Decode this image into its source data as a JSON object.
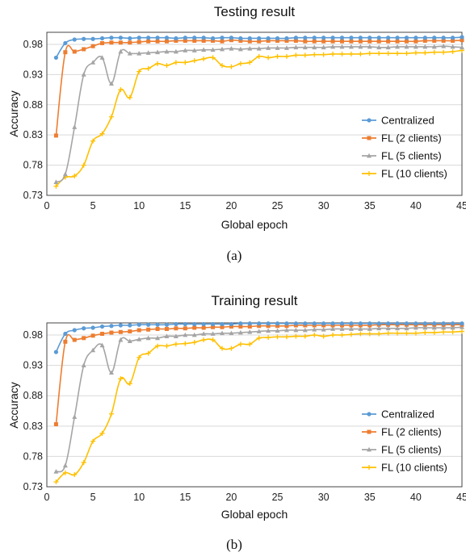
{
  "chart_data": [
    {
      "type": "line",
      "title": "Testing result",
      "caption": "(a)",
      "xlabel": "Global epoch",
      "ylabel": "Accuracy",
      "xlim": [
        0,
        45
      ],
      "ylim": [
        0.73,
        1.0
      ],
      "xticks": [
        0,
        5,
        10,
        15,
        20,
        25,
        30,
        35,
        40,
        45
      ],
      "yticks": [
        0.73,
        0.78,
        0.83,
        0.88,
        0.93,
        0.98
      ],
      "ytick_labels": [
        "0.73",
        "0.78",
        "0.83",
        "0.88",
        "0.93",
        "0.98"
      ],
      "grid": "horizontal",
      "legend_position": "right",
      "x": [
        1,
        2,
        3,
        4,
        5,
        6,
        7,
        8,
        9,
        10,
        11,
        12,
        13,
        14,
        15,
        16,
        17,
        18,
        19,
        20,
        21,
        22,
        23,
        24,
        25,
        26,
        27,
        28,
        29,
        30,
        31,
        32,
        33,
        34,
        35,
        36,
        37,
        38,
        39,
        40,
        41,
        42,
        43,
        44,
        45
      ],
      "series": [
        {
          "name": "Centralized",
          "color": "#5B9BD5",
          "marker": "circle",
          "values": [
            0.958,
            0.982,
            0.988,
            0.989,
            0.989,
            0.99,
            0.991,
            0.991,
            0.99,
            0.991,
            0.991,
            0.991,
            0.991,
            0.99,
            0.991,
            0.991,
            0.991,
            0.99,
            0.991,
            0.991,
            0.99,
            0.99,
            0.99,
            0.99,
            0.99,
            0.99,
            0.991,
            0.991,
            0.991,
            0.991,
            0.991,
            0.991,
            0.991,
            0.991,
            0.991,
            0.991,
            0.991,
            0.991,
            0.991,
            0.991,
            0.991,
            0.991,
            0.991,
            0.991,
            0.992
          ]
        },
        {
          "name": "FL (2 clients)",
          "color": "#ED7D31",
          "marker": "square",
          "values": [
            0.829,
            0.967,
            0.968,
            0.972,
            0.977,
            0.982,
            0.983,
            0.983,
            0.983,
            0.984,
            0.985,
            0.985,
            0.985,
            0.986,
            0.986,
            0.986,
            0.986,
            0.986,
            0.985,
            0.987,
            0.986,
            0.985,
            0.985,
            0.986,
            0.986,
            0.986,
            0.986,
            0.985,
            0.985,
            0.985,
            0.985,
            0.985,
            0.985,
            0.985,
            0.985,
            0.985,
            0.985,
            0.985,
            0.985,
            0.985,
            0.986,
            0.986,
            0.986,
            0.986,
            0.987
          ]
        },
        {
          "name": "FL (5 clients)",
          "color": "#A5A5A5",
          "marker": "triangle",
          "values": [
            0.752,
            0.765,
            0.843,
            0.93,
            0.95,
            0.958,
            0.915,
            0.968,
            0.965,
            0.965,
            0.966,
            0.967,
            0.968,
            0.968,
            0.97,
            0.97,
            0.971,
            0.971,
            0.972,
            0.973,
            0.972,
            0.973,
            0.973,
            0.974,
            0.974,
            0.974,
            0.975,
            0.975,
            0.975,
            0.975,
            0.976,
            0.976,
            0.976,
            0.976,
            0.976,
            0.975,
            0.975,
            0.976,
            0.976,
            0.976,
            0.976,
            0.976,
            0.977,
            0.976,
            0.975
          ]
        },
        {
          "name": "FL (10 clients)",
          "color": "#FFC000",
          "marker": "cross",
          "values": [
            0.745,
            0.76,
            0.762,
            0.78,
            0.82,
            0.832,
            0.86,
            0.905,
            0.892,
            0.935,
            0.94,
            0.948,
            0.945,
            0.95,
            0.95,
            0.953,
            0.956,
            0.958,
            0.945,
            0.943,
            0.948,
            0.95,
            0.96,
            0.958,
            0.96,
            0.96,
            0.962,
            0.962,
            0.963,
            0.963,
            0.964,
            0.964,
            0.964,
            0.964,
            0.965,
            0.965,
            0.965,
            0.965,
            0.965,
            0.966,
            0.966,
            0.967,
            0.967,
            0.968,
            0.97
          ]
        }
      ]
    },
    {
      "type": "line",
      "title": "Training result",
      "caption": "(b)",
      "xlabel": "Global epoch",
      "ylabel": "Accuracy",
      "xlim": [
        0,
        45
      ],
      "ylim": [
        0.73,
        1.0
      ],
      "xticks": [
        0,
        5,
        10,
        15,
        20,
        25,
        30,
        35,
        40,
        45
      ],
      "yticks": [
        0.73,
        0.78,
        0.83,
        0.88,
        0.93,
        0.98
      ],
      "ytick_labels": [
        "0.73",
        "0.78",
        "0.83",
        "0.88",
        "0.93",
        "0.98"
      ],
      "grid": "horizontal",
      "legend_position": "right",
      "x": [
        1,
        2,
        3,
        4,
        5,
        6,
        7,
        8,
        9,
        10,
        11,
        12,
        13,
        14,
        15,
        16,
        17,
        18,
        19,
        20,
        21,
        22,
        23,
        24,
        25,
        26,
        27,
        28,
        29,
        30,
        31,
        32,
        33,
        34,
        35,
        36,
        37,
        38,
        39,
        40,
        41,
        42,
        43,
        44,
        45
      ],
      "series": [
        {
          "name": "Centralized",
          "color": "#5B9BD5",
          "marker": "circle",
          "values": [
            0.952,
            0.982,
            0.988,
            0.991,
            0.992,
            0.994,
            0.995,
            0.996,
            0.996,
            0.997,
            0.997,
            0.997,
            0.997,
            0.998,
            0.998,
            0.998,
            0.998,
            0.998,
            0.998,
            0.998,
            0.999,
            0.999,
            0.999,
            0.999,
            0.999,
            0.999,
            0.999,
            0.999,
            0.999,
            0.999,
            0.999,
            0.999,
            0.999,
            0.999,
            0.999,
            0.999,
            0.999,
            0.999,
            0.999,
            0.999,
            0.999,
            0.999,
            0.999,
            0.999,
            0.999
          ]
        },
        {
          "name": "FL (2 clients)",
          "color": "#ED7D31",
          "marker": "square",
          "values": [
            0.833,
            0.969,
            0.972,
            0.975,
            0.979,
            0.982,
            0.984,
            0.985,
            0.986,
            0.988,
            0.989,
            0.99,
            0.99,
            0.991,
            0.991,
            0.992,
            0.992,
            0.993,
            0.993,
            0.994,
            0.994,
            0.994,
            0.995,
            0.995,
            0.995,
            0.995,
            0.996,
            0.996,
            0.996,
            0.996,
            0.996,
            0.996,
            0.996,
            0.996,
            0.996,
            0.997,
            0.997,
            0.997,
            0.997,
            0.997,
            0.997,
            0.997,
            0.997,
            0.997,
            0.997
          ]
        },
        {
          "name": "FL (5 clients)",
          "color": "#A5A5A5",
          "marker": "triangle",
          "values": [
            0.755,
            0.765,
            0.845,
            0.93,
            0.955,
            0.963,
            0.918,
            0.972,
            0.97,
            0.973,
            0.975,
            0.975,
            0.978,
            0.978,
            0.98,
            0.98,
            0.982,
            0.982,
            0.983,
            0.983,
            0.984,
            0.985,
            0.986,
            0.987,
            0.987,
            0.988,
            0.988,
            0.988,
            0.989,
            0.989,
            0.99,
            0.99,
            0.99,
            0.99,
            0.99,
            0.991,
            0.991,
            0.991,
            0.991,
            0.992,
            0.992,
            0.992,
            0.992,
            0.992,
            0.993
          ]
        },
        {
          "name": "FL (10 clients)",
          "color": "#FFC000",
          "marker": "cross",
          "values": [
            0.738,
            0.753,
            0.75,
            0.77,
            0.805,
            0.818,
            0.85,
            0.908,
            0.9,
            0.943,
            0.95,
            0.962,
            0.962,
            0.965,
            0.966,
            0.968,
            0.972,
            0.972,
            0.958,
            0.958,
            0.965,
            0.965,
            0.975,
            0.976,
            0.977,
            0.977,
            0.978,
            0.978,
            0.98,
            0.978,
            0.98,
            0.98,
            0.981,
            0.982,
            0.982,
            0.982,
            0.983,
            0.983,
            0.983,
            0.983,
            0.984,
            0.984,
            0.985,
            0.985,
            0.986
          ]
        }
      ]
    }
  ]
}
